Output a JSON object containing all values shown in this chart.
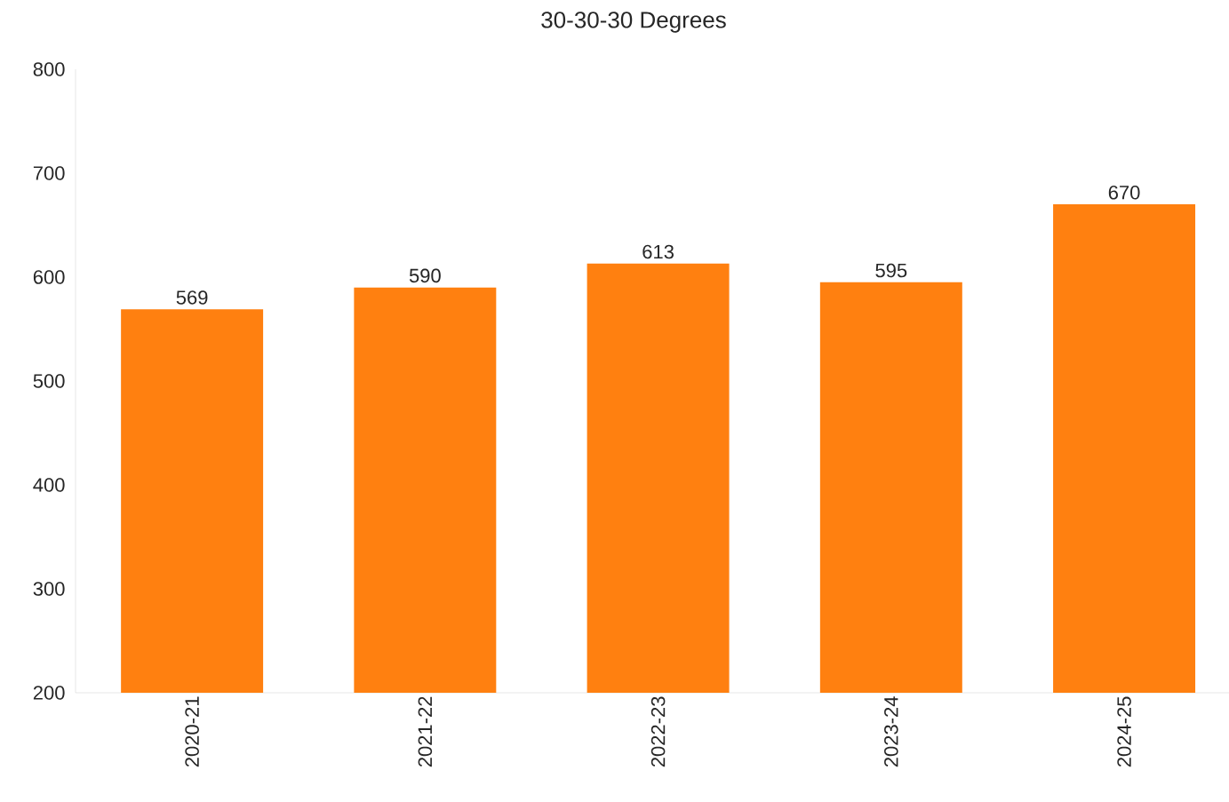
{
  "chart_data": {
    "type": "bar",
    "title": "30-30-30 Degrees",
    "categories": [
      "2020-21",
      "2021-22",
      "2022-23",
      "2023-24",
      "2024-25"
    ],
    "values": [
      569,
      590,
      613,
      595,
      670
    ],
    "color": "#ff8010",
    "ylim": [
      200,
      800
    ],
    "yticks": [
      200,
      300,
      400,
      500,
      600,
      700,
      800
    ],
    "data_labels": true
  }
}
